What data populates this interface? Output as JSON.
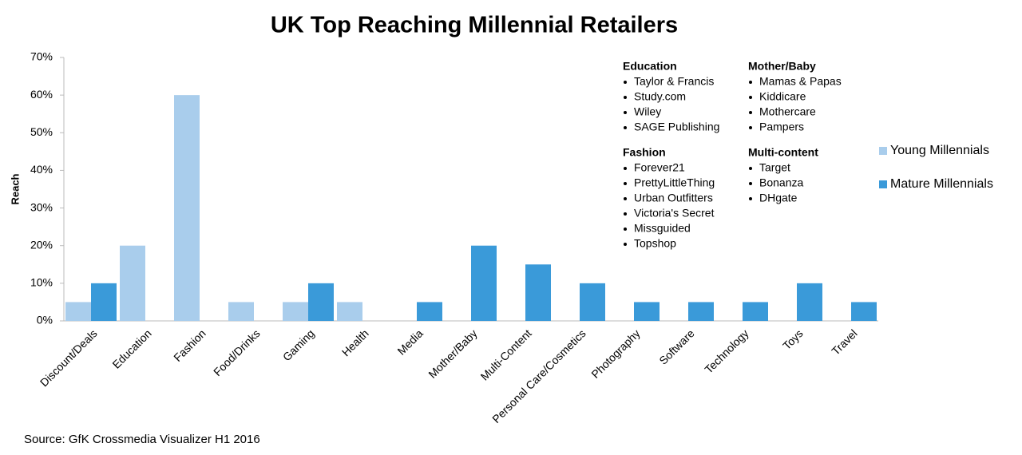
{
  "chart_data": {
    "type": "bar",
    "title": "UK Top Reaching Millennial Retailers",
    "y_label": "Reach",
    "source": "Source: GfK Crossmedia Visualizer H1 2016",
    "categories": [
      "Discount/Deals",
      "Education",
      "Fashion",
      "Food/Drinks",
      "Gaming",
      "Health",
      "Media",
      "Mother/Baby",
      "Multi-Content",
      "Personal Care/Cosmetics",
      "Photography",
      "Software",
      "Technology",
      "Toys",
      "Travel"
    ],
    "series": [
      {
        "name": "Young Millennials",
        "color": "#a9cdec",
        "values": [
          5,
          20,
          60,
          5,
          5,
          5,
          null,
          null,
          null,
          null,
          null,
          null,
          null,
          null,
          null
        ]
      },
      {
        "name": "Mature Millennials",
        "color": "#3a9ad9",
        "values": [
          10,
          null,
          null,
          null,
          10,
          null,
          5,
          20,
          15,
          10,
          5,
          5,
          5,
          10,
          5
        ]
      }
    ],
    "ylim": [
      0,
      70
    ],
    "yticks": [
      {
        "value": 0,
        "label": "0%"
      },
      {
        "value": 10,
        "label": "10%"
      },
      {
        "value": 20,
        "label": "20%"
      },
      {
        "value": 30,
        "label": "30%"
      },
      {
        "value": 40,
        "label": "40%"
      },
      {
        "value": 50,
        "label": "50%"
      },
      {
        "value": 60,
        "label": "60%"
      },
      {
        "value": 70,
        "label": "70%"
      }
    ],
    "legend_position": "right",
    "annotations": [
      {
        "title": "Education",
        "color": "#a9cdec",
        "items": [
          "Taylor & Francis",
          "Study.com",
          "Wiley",
          "SAGE Publishing"
        ]
      },
      {
        "title": "Mother/Baby",
        "color": "#3a9ad9",
        "items": [
          "Mamas & Papas",
          "Kiddicare",
          "Mothercare",
          "Pampers"
        ]
      },
      {
        "title": "Fashion",
        "color": "#a9cdec",
        "items": [
          "Forever21",
          "PrettyLittleThing",
          "Urban Outfitters",
          "Victoria's Secret",
          "Missguided",
          "Topshop"
        ]
      },
      {
        "title": "Multi-content",
        "color": "#3a9ad9",
        "items": [
          "Target",
          "Bonanza",
          "DHgate"
        ]
      }
    ]
  }
}
